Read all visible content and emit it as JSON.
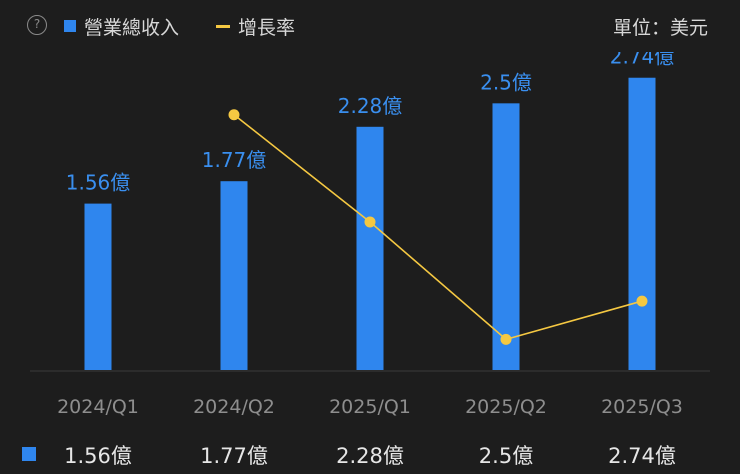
{
  "legend": {
    "help_symbol": "?",
    "revenue_label": "營業總收入",
    "growth_label": "增長率",
    "unit_label": "單位：美元"
  },
  "colors": {
    "bar": "#2f86ee",
    "line": "#f5c842",
    "bar_label": "#3a8fef",
    "axis_text": "#8e8e8e"
  },
  "chart_data": {
    "type": "bar",
    "categories": [
      "2024/Q1",
      "2024/Q2",
      "2025/Q1",
      "2025/Q2",
      "2025/Q3"
    ],
    "series": [
      {
        "name": "營業總收入",
        "values": [
          1.56,
          1.77,
          2.28,
          2.5,
          2.74
        ],
        "unit": "億"
      },
      {
        "name": "增長率",
        "type": "line",
        "values": [
          null,
          1.0,
          0.58,
          0.12,
          0.27
        ],
        "axis": "secondary"
      }
    ],
    "data_labels": [
      "1.56億",
      "1.77億",
      "2.28億",
      "2.5億",
      "2.74億"
    ],
    "ylim": [
      0,
      3.0
    ],
    "y2lim": [
      0,
      1.14
    ],
    "grid": false
  },
  "table": {
    "values": [
      "1.56億",
      "1.77億",
      "2.28億",
      "2.5億",
      "2.74億"
    ]
  }
}
